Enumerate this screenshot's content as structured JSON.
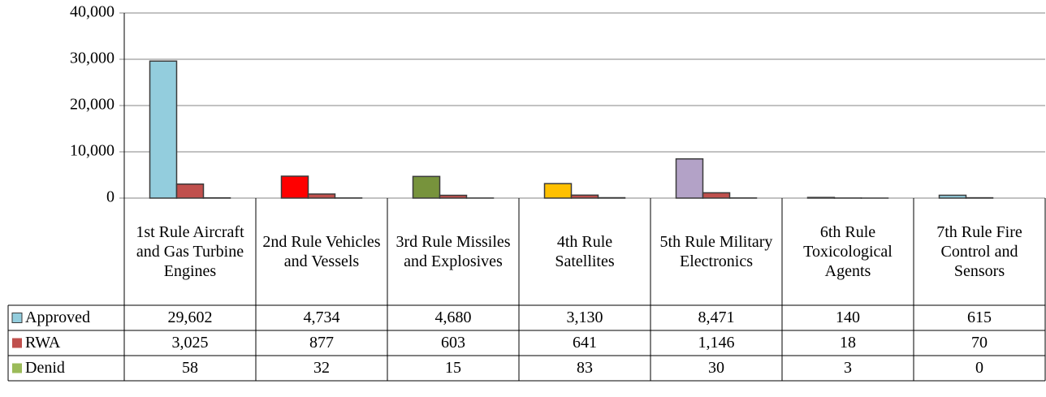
{
  "chart_data": {
    "type": "bar",
    "categories": [
      "1st Rule Aircraft and Gas Turbine Engines",
      "2nd Rule Vehicles and Vessels",
      "3rd Rule Missiles and Explosives",
      "4th Rule Satellites",
      "5th Rule Military Electronics",
      "6th Rule Toxicological Agents",
      "7th Rule Fire Control and Sensors"
    ],
    "series": [
      {
        "name": "Approved",
        "color": "#93cddd",
        "colors": [
          "#93cddd",
          "#ff0000",
          "#77933c",
          "#ffc000",
          "#b3a2c7",
          "#93cddd",
          "#93cddd"
        ],
        "values": [
          29602,
          4734,
          4680,
          3130,
          8471,
          140,
          615
        ],
        "value_labels": [
          "29,602",
          "4,734",
          "4,680",
          "3,130",
          "8,471",
          "140",
          "615"
        ]
      },
      {
        "name": "RWA",
        "color": "#c0504d",
        "values": [
          3025,
          877,
          603,
          641,
          1146,
          18,
          70
        ],
        "value_labels": [
          "3,025",
          "877",
          "603",
          "641",
          "1,146",
          "18",
          "70"
        ]
      },
      {
        "name": "Denid",
        "color": "#9bbb59",
        "values": [
          58,
          32,
          15,
          83,
          30,
          3,
          0
        ]
      }
    ],
    "ylim": [
      0,
      40000
    ],
    "yticks": [
      0,
      {
        "value": 10000,
        "label": "10,000"
      },
      {
        "value": 20000,
        "label": "20,000"
      },
      {
        "value": 30000,
        "label": "30,000"
      },
      {
        "value": 40000,
        "label": "40,000"
      }
    ],
    "grid": true,
    "data_table": true
  }
}
